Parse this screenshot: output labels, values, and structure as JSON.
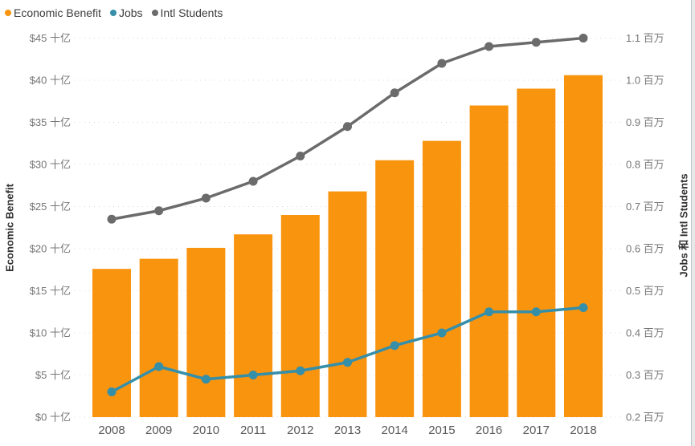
{
  "legend": {
    "items": [
      {
        "label": "Economic Benefit",
        "color": "#F9940F"
      },
      {
        "label": "Jobs",
        "color": "#358FA9"
      },
      {
        "label": "Intl Students",
        "color": "#6B6B6B"
      }
    ]
  },
  "chart_data": {
    "type": "bar+line combo",
    "title": "",
    "categories": [
      "2008",
      "2009",
      "2010",
      "2011",
      "2012",
      "2013",
      "2014",
      "2015",
      "2016",
      "2017",
      "2018"
    ],
    "series": [
      {
        "name": "Economic Benefit",
        "type": "bar",
        "axis": "left",
        "color": "#F9940F",
        "values": [
          17.6,
          18.8,
          20.1,
          21.7,
          24.0,
          26.8,
          30.5,
          32.8,
          37.0,
          39.0,
          40.6
        ]
      },
      {
        "name": "Jobs",
        "type": "line",
        "axis": "right",
        "color": "#358FA9",
        "values": [
          0.26,
          0.32,
          0.29,
          0.3,
          0.31,
          0.33,
          0.37,
          0.4,
          0.45,
          0.45,
          0.46
        ]
      },
      {
        "name": "Intl Students",
        "type": "line",
        "axis": "right",
        "color": "#6B6B6B",
        "values": [
          0.67,
          0.69,
          0.72,
          0.76,
          0.82,
          0.89,
          0.97,
          1.04,
          1.08,
          1.09,
          1.1
        ]
      }
    ],
    "left_axis": {
      "title": "Economic Benefit",
      "prefix": "$",
      "unit": "十亿",
      "min": 0,
      "max": 45,
      "step": 5,
      "tick_labels": [
        "$0 十亿",
        "$5 十亿",
        "$10 十亿",
        "$15 十亿",
        "$20 十亿",
        "$25 十亿",
        "$30 十亿",
        "$35 十亿",
        "$40 十亿",
        "$45 十亿"
      ]
    },
    "right_axis": {
      "title": "Jobs 和 Intl Students",
      "unit": "百万",
      "min": 0.2,
      "max": 1.1,
      "step": 0.1,
      "tick_labels": [
        "0.2 百万",
        "0.3 百万",
        "0.4 百万",
        "0.5 百万",
        "0.6 百万",
        "0.7 百万",
        "0.8 百万",
        "0.9 百万",
        "1.0 百万",
        "1.1 百万"
      ]
    },
    "grid": "dotted horizontal lines",
    "legend_position": "top-left"
  }
}
